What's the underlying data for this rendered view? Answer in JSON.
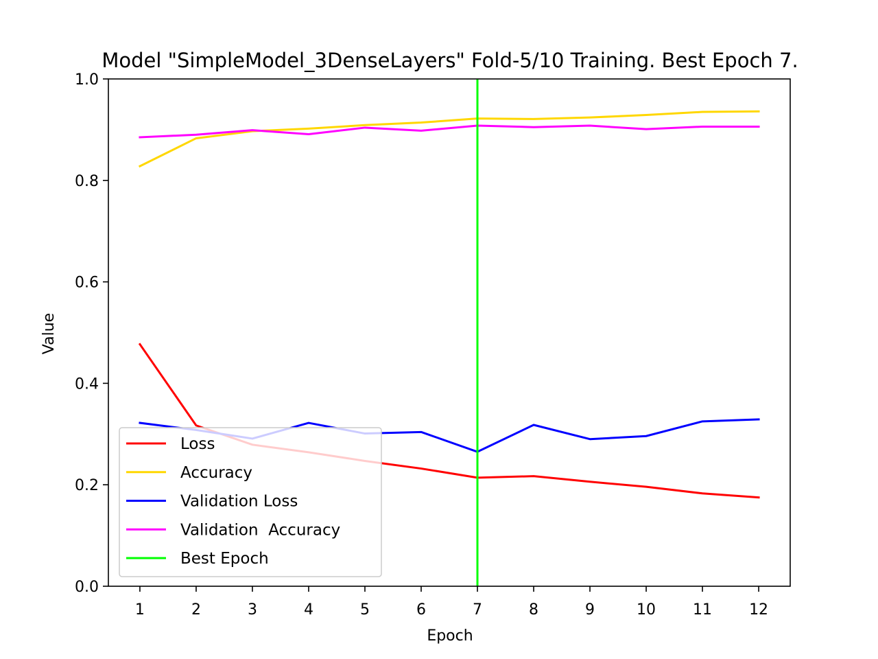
{
  "chart_data": {
    "type": "line",
    "title": "Model \"SimpleModel_3DenseLayers\" Fold-5/10 Training. Best Epoch 7.",
    "xlabel": "Epoch",
    "ylabel": "Value",
    "x": [
      1,
      2,
      3,
      4,
      5,
      6,
      7,
      8,
      9,
      10,
      11,
      12
    ],
    "xlim": [
      0.44,
      12.56
    ],
    "ylim": [
      0.0,
      1.0
    ],
    "xticks": [
      "1",
      "2",
      "3",
      "4",
      "5",
      "6",
      "7",
      "8",
      "9",
      "10",
      "11",
      "12"
    ],
    "yticks": [
      "0.0",
      "0.2",
      "0.4",
      "0.6",
      "0.8",
      "1.0"
    ],
    "grid": false,
    "legend_position": "lower-left",
    "series": [
      {
        "name": "Loss",
        "color": "#ff0000",
        "values": [
          0.477,
          0.317,
          0.279,
          0.264,
          0.247,
          0.232,
          0.214,
          0.217,
          0.206,
          0.196,
          0.183,
          0.175
        ]
      },
      {
        "name": "Accuracy",
        "color": "#ffd700",
        "values": [
          0.828,
          0.883,
          0.897,
          0.902,
          0.909,
          0.914,
          0.922,
          0.921,
          0.924,
          0.929,
          0.935,
          0.936
        ]
      },
      {
        "name": "Validation Loss",
        "color": "#0000ff",
        "values": [
          0.322,
          0.308,
          0.291,
          0.322,
          0.301,
          0.304,
          0.265,
          0.318,
          0.29,
          0.296,
          0.325,
          0.329
        ]
      },
      {
        "name": "Validation  Accuracy",
        "color": "#ff00ff",
        "values": [
          0.885,
          0.89,
          0.899,
          0.891,
          0.904,
          0.898,
          0.908,
          0.905,
          0.908,
          0.901,
          0.906,
          0.906
        ]
      }
    ],
    "best_epoch": {
      "name": "Best Epoch",
      "x": 7,
      "color": "#00ff00"
    }
  }
}
